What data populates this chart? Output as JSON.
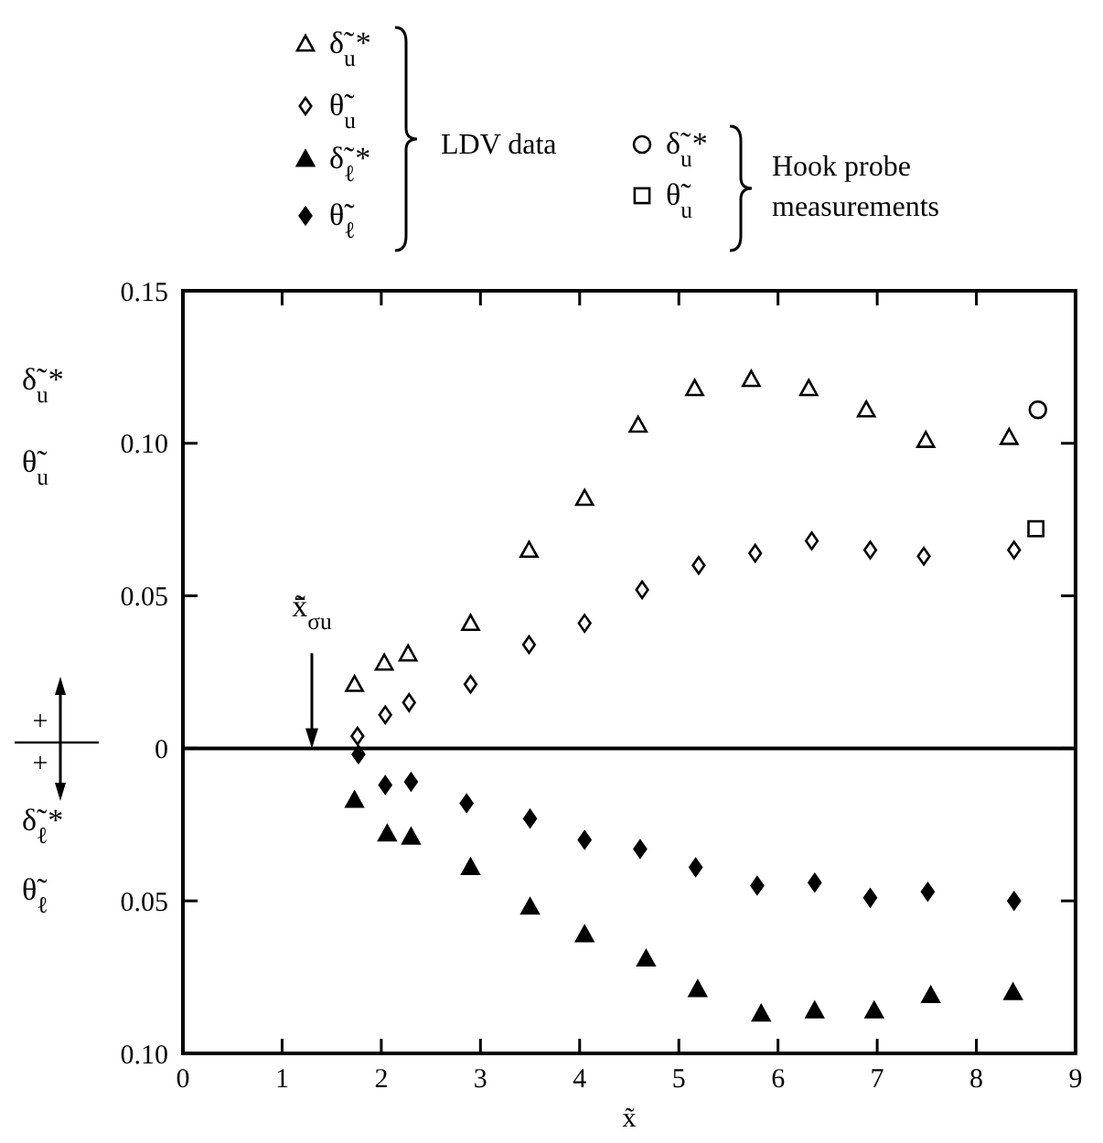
{
  "chart_data": {
    "type": "scatter",
    "xlabel": "x̃",
    "legend": "top",
    "xlim": [
      0,
      9
    ],
    "xticks": [
      0,
      1,
      2,
      3,
      4,
      5,
      6,
      7,
      8,
      9
    ],
    "ylim": [
      -0.1,
      0.15
    ],
    "yticks": [
      {
        "value": -0.1,
        "label": "0.10"
      },
      {
        "value": -0.05,
        "label": "0.05"
      },
      0,
      0.05,
      {
        "value": 0.1,
        "label": "0.10"
      },
      0.15
    ],
    "ref_lines": [
      {
        "axis": "y",
        "value": 0,
        "color": "#000000"
      }
    ],
    "annotations": [
      "LDV data",
      "Hook probe measurements",
      "δ̃$_{u}$*",
      "θ̃$_{u}$",
      "δ̃$_{ℓ}$*",
      "θ̃$_{ℓ}$",
      "+",
      "+",
      {
        "text": "x̃̄$_{σu}$",
        "x": 1.3,
        "y": 0
      }
    ],
    "series": [
      {
        "name": "δ̃$_{u}$*",
        "color": "#000000",
        "marker": "triangle",
        "x": [
          1.73,
          2.03,
          2.27,
          2.9,
          3.49,
          4.05,
          4.59,
          5.16,
          5.73,
          6.31,
          6.89,
          7.49,
          8.33
        ],
        "values": [
          0.021,
          0.028,
          0.031,
          0.041,
          0.065,
          0.082,
          0.106,
          0.118,
          0.121,
          0.118,
          0.111,
          0.101,
          0.102
        ]
      },
      {
        "name": "θ̃$_{u}$",
        "color": "#000000",
        "marker": "diamond",
        "x": [
          1.76,
          2.04,
          2.28,
          2.9,
          3.49,
          4.05,
          4.63,
          5.2,
          5.77,
          6.34,
          6.93,
          7.47,
          8.38
        ],
        "values": [
          0.004,
          0.011,
          0.015,
          0.021,
          0.034,
          0.041,
          0.052,
          0.06,
          0.064,
          0.068,
          0.065,
          0.063,
          0.065
        ]
      },
      {
        "name": "δ̃$_{ℓ}$*",
        "color": "#000000",
        "marker": "triangle",
        "x": [
          1.73,
          2.06,
          2.3,
          2.9,
          3.5,
          4.05,
          4.67,
          5.19,
          5.83,
          6.37,
          6.97,
          7.54,
          8.37
        ],
        "values": [
          -0.017,
          -0.028,
          -0.029,
          -0.039,
          -0.052,
          -0.061,
          -0.069,
          -0.079,
          -0.087,
          -0.086,
          -0.086,
          -0.081,
          -0.08
        ]
      },
      {
        "name": "θ̃$_{ℓ}$",
        "color": "#000000",
        "marker": "diamond",
        "x": [
          1.77,
          2.04,
          2.3,
          2.86,
          3.5,
          4.05,
          4.61,
          5.17,
          5.79,
          6.37,
          6.93,
          7.51,
          8.38
        ],
        "values": [
          -0.002,
          -0.012,
          -0.011,
          -0.018,
          -0.023,
          -0.03,
          -0.033,
          -0.039,
          -0.045,
          -0.044,
          -0.049,
          -0.047,
          -0.05
        ]
      },
      {
        "name": "δ̃$_{u}$*",
        "color": "#000000",
        "marker": "circle",
        "x": [
          8.62
        ],
        "values": [
          0.111
        ]
      },
      {
        "name": "θ̃$_{u}$",
        "color": "#000000",
        "marker": "square",
        "x": [
          8.6
        ],
        "values": [
          0.072
        ]
      }
    ]
  }
}
